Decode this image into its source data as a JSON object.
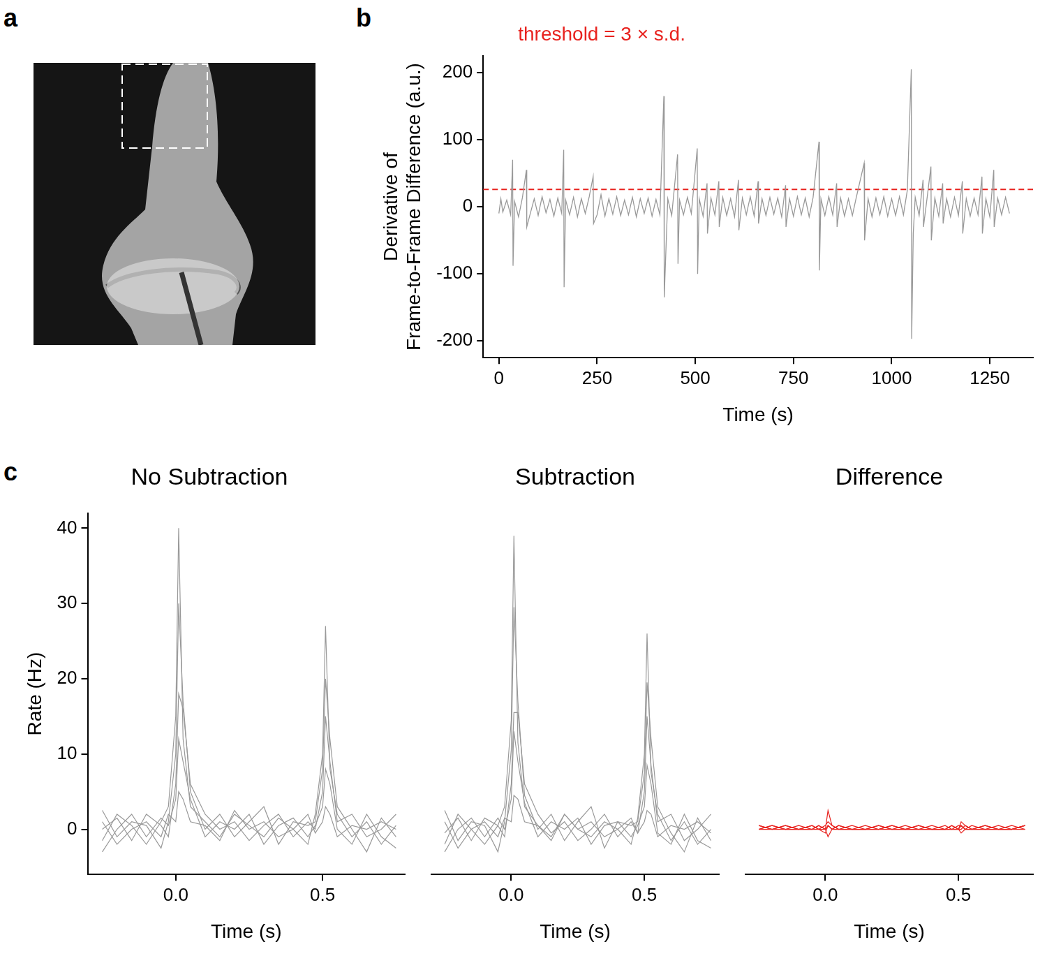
{
  "panel_labels": [
    "a",
    "b",
    "c"
  ],
  "chart_data": [
    {
      "type": "line",
      "annotation": "threshold = 3 × s.d.",
      "x_label": "Time (s)",
      "y_label": [
        "Derivative of",
        "Frame-to-Frame Difference (a.u.)"
      ],
      "xlim": [
        -40,
        1360
      ],
      "xticks": [
        0,
        250,
        500,
        750,
        1000,
        1250
      ],
      "ylim": [
        -225,
        225
      ],
      "yticks": [
        -200,
        -100,
        0,
        100,
        200
      ],
      "grid": false,
      "threshold": {
        "value": 26,
        "color": "#e8231f",
        "line_style": "dashed"
      },
      "series": [
        {
          "color": "#999999",
          "x": [
            0,
            5,
            10,
            20,
            30,
            35,
            36,
            40,
            50,
            60,
            70,
            71,
            80,
            90,
            100,
            110,
            120,
            130,
            140,
            150,
            160,
            165,
            166,
            170,
            180,
            190,
            200,
            210,
            220,
            230,
            240,
            241,
            250,
            260,
            270,
            280,
            290,
            300,
            310,
            320,
            330,
            340,
            350,
            360,
            370,
            380,
            390,
            400,
            410,
            420,
            421,
            430,
            440,
            455,
            456,
            460,
            470,
            480,
            490,
            505,
            506,
            510,
            520,
            530,
            531,
            540,
            550,
            560,
            561,
            570,
            580,
            590,
            600,
            610,
            611,
            620,
            630,
            640,
            650,
            660,
            661,
            670,
            680,
            690,
            700,
            710,
            720,
            730,
            731,
            740,
            750,
            760,
            770,
            780,
            790,
            800,
            815,
            816,
            820,
            830,
            840,
            850,
            860,
            861,
            870,
            880,
            890,
            900,
            910,
            930,
            931,
            940,
            950,
            960,
            970,
            980,
            990,
            1000,
            1010,
            1020,
            1030,
            1040,
            1050,
            1051,
            1055,
            1060,
            1070,
            1080,
            1081,
            1090,
            1100,
            1101,
            1110,
            1120,
            1130,
            1131,
            1140,
            1150,
            1160,
            1170,
            1180,
            1181,
            1190,
            1200,
            1210,
            1220,
            1230,
            1231,
            1240,
            1250,
            1260,
            1261,
            1270,
            1280,
            1290,
            1300
          ],
          "values": [
            -10,
            12,
            -8,
            10,
            -12,
            70,
            -88,
            8,
            -15,
            14,
            55,
            -30,
            -10,
            12,
            -13,
            15,
            -9,
            11,
            -14,
            13,
            -10,
            85,
            -120,
            10,
            -12,
            14,
            -15,
            12,
            -10,
            15,
            45,
            -25,
            -12,
            18,
            -14,
            12,
            -11,
            15,
            -13,
            10,
            -12,
            14,
            -15,
            12,
            -10,
            13,
            -14,
            11,
            -12,
            165,
            -135,
            12,
            -13,
            78,
            -85,
            10,
            -12,
            14,
            -10,
            87,
            -100,
            12,
            -14,
            35,
            -40,
            13,
            -12,
            38,
            -30,
            14,
            -13,
            12,
            -15,
            40,
            -35,
            13,
            -12,
            15,
            -14,
            38,
            -25,
            12,
            -13,
            14,
            -11,
            13,
            -15,
            32,
            -30,
            12,
            -14,
            15,
            -12,
            13,
            -15,
            14,
            97,
            -95,
            12,
            -13,
            15,
            -12,
            35,
            -30,
            13,
            -14,
            12,
            -13,
            14,
            65,
            -50,
            12,
            -15,
            13,
            -12,
            15,
            -14,
            12,
            -13,
            15,
            -12,
            25,
            205,
            -197,
            -40,
            14,
            -13,
            40,
            -30,
            12,
            60,
            -50,
            13,
            -14,
            35,
            -25,
            12,
            -15,
            14,
            -13,
            38,
            -40,
            12,
            -14,
            13,
            -12,
            45,
            -40,
            12,
            -15,
            55,
            -30,
            13,
            -12,
            14,
            -10
          ]
        }
      ]
    },
    {
      "type": "line",
      "title": "No Subtraction",
      "x_label": "Time (s)",
      "y_label": "Rate (Hz)",
      "xlim": [
        -0.3,
        0.78
      ],
      "xticks": [
        {
          "value": 0,
          "label": "0.0"
        },
        0.5
      ],
      "ylim": [
        -6,
        42
      ],
      "yticks": [
        0,
        10,
        20,
        30,
        40
      ],
      "grid": false,
      "x": [
        -0.25,
        -0.2,
        -0.15,
        -0.1,
        -0.05,
        -0.025,
        0,
        0.01,
        0.025,
        0.05,
        0.1,
        0.15,
        0.2,
        0.25,
        0.3,
        0.35,
        0.4,
        0.45,
        0.475,
        0.5,
        0.51,
        0.525,
        0.55,
        0.6,
        0.65,
        0.7,
        0.75
      ],
      "series": [
        {
          "color": "#999999",
          "values": [
            -1.5,
            2,
            0.5,
            -2,
            1,
            3,
            15,
            40,
            12,
            3,
            1,
            -1,
            2,
            0.5,
            -1,
            1.5,
            0,
            -2,
            2,
            10,
            27,
            8,
            2,
            -1,
            1,
            -2,
            0.5
          ]
        },
        {
          "color": "#999999",
          "values": [
            2.5,
            -1,
            1,
            0.5,
            -2.5,
            1,
            10,
            30,
            17,
            5,
            0,
            2,
            -1,
            1,
            3,
            -2,
            1,
            0.5,
            1,
            8,
            20,
            12,
            3,
            0,
            -3,
            1.5,
            -1
          ]
        },
        {
          "color": "#999999",
          "values": [
            0,
            1.5,
            -1.5,
            2,
            0.5,
            -1,
            6,
            18,
            16,
            6,
            2,
            0,
            1,
            -1.5,
            0.5,
            2,
            -1,
            1,
            0,
            5,
            15,
            9,
            1,
            2,
            -1,
            0,
            2
          ]
        },
        {
          "color": "#999999",
          "values": [
            -3,
            0,
            2,
            -1,
            1.5,
            0.5,
            4,
            12,
            9,
            4,
            -1,
            1,
            0,
            2,
            -2,
            0.5,
            1.5,
            -1,
            0.5,
            3,
            8,
            6,
            0,
            -2,
            2,
            -1,
            -2.5
          ]
        },
        {
          "color": "#999999",
          "values": [
            1,
            -2,
            0,
            1,
            -1,
            2,
            1,
            5,
            4,
            1,
            0.5,
            -1.5,
            2.5,
            0,
            1,
            -1,
            0,
            2,
            -0.5,
            1,
            3,
            2,
            -1,
            0.5,
            0,
            1,
            0
          ]
        }
      ]
    },
    {
      "type": "line",
      "title": "Subtraction",
      "x_label": "Time (s)",
      "xlim": [
        -0.3,
        0.78
      ],
      "xticks": [
        {
          "value": 0,
          "label": "0.0"
        },
        0.5
      ],
      "ylim": [
        -6,
        42
      ],
      "tick_labels": "x",
      "grid": false,
      "x": [
        -0.25,
        -0.2,
        -0.15,
        -0.1,
        -0.05,
        -0.025,
        0,
        0.01,
        0.025,
        0.05,
        0.1,
        0.15,
        0.2,
        0.25,
        0.3,
        0.35,
        0.4,
        0.45,
        0.475,
        0.5,
        0.51,
        0.525,
        0.55,
        0.6,
        0.65,
        0.7,
        0.75
      ],
      "series": [
        {
          "color": "#999999",
          "values": [
            -2,
            2,
            0,
            -2,
            0.5,
            3,
            14.5,
            39,
            11.5,
            3,
            0.5,
            -1,
            2,
            0,
            -1,
            1,
            0,
            -2,
            1.5,
            10,
            26,
            7.5,
            2,
            -1.5,
            1,
            -2,
            0
          ]
        },
        {
          "color": "#999999",
          "values": [
            2.5,
            -1.5,
            1,
            0.5,
            -3,
            1,
            10.5,
            29.5,
            17,
            4.5,
            0,
            2,
            -1.5,
            1,
            3,
            -2.5,
            1,
            0.5,
            1,
            7.5,
            19.5,
            12,
            3,
            -0.5,
            -3,
            1.5,
            -1.5
          ]
        },
        {
          "color": "#999999",
          "values": [
            -0.5,
            1.5,
            -1.5,
            1.5,
            0.5,
            -1,
            6,
            15.5,
            15.5,
            6,
            2,
            -0.5,
            1,
            -1.5,
            0,
            2,
            -1,
            1,
            -0.5,
            5,
            15,
            8.5,
            1,
            2,
            -1.5,
            0,
            2
          ]
        },
        {
          "color": "#999999",
          "values": [
            -3,
            0,
            1.5,
            -1,
            1.5,
            0,
            4,
            13,
            9,
            3.5,
            -1,
            1,
            0,
            1.5,
            -2,
            0.5,
            1,
            -1,
            0.5,
            3,
            8.5,
            6,
            -0.5,
            -2,
            2,
            -1.5,
            -2.5
          ]
        },
        {
          "color": "#999999",
          "values": [
            1,
            -2.5,
            0,
            1,
            -1,
            1.5,
            1,
            4.5,
            4,
            1,
            0.5,
            -1.5,
            2,
            0,
            1,
            -1,
            0,
            1.5,
            -0.5,
            1,
            2.5,
            2,
            -1,
            0.5,
            0,
            1,
            -0.5
          ]
        }
      ]
    },
    {
      "type": "line",
      "title": "Difference",
      "x_label": "Time (s)",
      "xlim": [
        -0.3,
        0.78
      ],
      "xticks": [
        {
          "value": 0,
          "label": "0.0"
        },
        0.5
      ],
      "ylim": [
        -6,
        42
      ],
      "tick_labels": "x",
      "grid": false,
      "x": [
        -0.25,
        -0.2,
        -0.15,
        -0.1,
        -0.05,
        -0.025,
        0,
        0.01,
        0.025,
        0.05,
        0.1,
        0.15,
        0.2,
        0.25,
        0.3,
        0.35,
        0.4,
        0.45,
        0.475,
        0.5,
        0.51,
        0.525,
        0.55,
        0.6,
        0.65,
        0.7,
        0.75
      ],
      "series": [
        {
          "color": "#e8231f",
          "values": [
            0.5,
            0,
            0.5,
            0,
            0.5,
            0,
            0.5,
            1,
            0.5,
            0,
            0.5,
            0,
            0,
            0.5,
            0,
            0.5,
            0,
            0,
            0.5,
            0,
            1,
            0.5,
            0,
            0.5,
            0,
            0,
            0.5
          ]
        },
        {
          "color": "#e8231f",
          "values": [
            0,
            0.5,
            0,
            0,
            0.5,
            0,
            -0.5,
            0.5,
            0,
            0.5,
            0,
            0,
            0.5,
            0,
            0,
            0.5,
            0,
            0,
            0,
            0.5,
            0.5,
            0,
            0,
            0.5,
            0,
            0,
            0.5
          ]
        },
        {
          "color": "#e8231f",
          "values": [
            0.5,
            0,
            0,
            0.5,
            0,
            0,
            0,
            2.5,
            0.5,
            0,
            0,
            0.5,
            0,
            0,
            0.5,
            0,
            0,
            0,
            0.5,
            0,
            0,
            0.5,
            0,
            0,
            0.5,
            0,
            0
          ]
        },
        {
          "color": "#e8231f",
          "values": [
            0,
            0,
            0.5,
            0,
            0,
            0.5,
            0,
            -1,
            0,
            0.5,
            0,
            0,
            0,
            0.5,
            0,
            0,
            0.5,
            0,
            0,
            0,
            -0.5,
            0,
            0.5,
            0,
            0,
            0.5,
            0
          ]
        },
        {
          "color": "#e8231f",
          "values": [
            0,
            0.5,
            0,
            0,
            0,
            0.5,
            0,
            0.5,
            0,
            0,
            0,
            0,
            0.5,
            0,
            0,
            0,
            0,
            0.5,
            0,
            0,
            0.5,
            0,
            0,
            0,
            0,
            0,
            0.5
          ]
        }
      ]
    }
  ]
}
